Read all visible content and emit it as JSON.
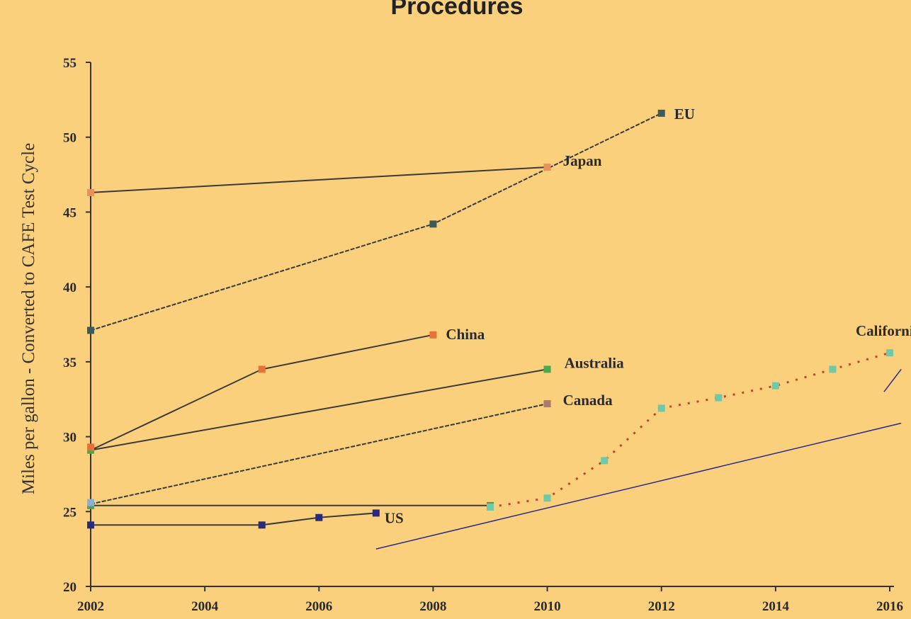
{
  "chart_data": {
    "type": "line",
    "title": "Procedures",
    "ylabel": "Miles per gallon - Converted to CAFE Test Cycle",
    "xlabel": "",
    "xlim": [
      2002,
      2016
    ],
    "ylim": [
      20,
      55
    ],
    "xticks": [
      "2002",
      "2004",
      "2006",
      "2008",
      "2010",
      "2012",
      "2014",
      "2016"
    ],
    "yticks": [
      "20",
      "25",
      "30",
      "35",
      "40",
      "45",
      "50",
      "55"
    ],
    "grid": false,
    "legend": "none",
    "series": [
      {
        "name": "EU",
        "color": "#3a3a3a",
        "marker_color": "#3d5a5a",
        "dashed": true,
        "points": [
          [
            2002,
            37.1
          ],
          [
            2008,
            44.2
          ],
          [
            2012,
            51.6
          ]
        ]
      },
      {
        "name": "Japan",
        "color": "#3a3a3a",
        "marker_color": "#e8915a",
        "dashed": false,
        "points": [
          [
            2002,
            46.3
          ],
          [
            2010,
            48.0
          ]
        ]
      },
      {
        "name": "China",
        "color": "#3a3a3a",
        "marker_color": "#e8703a",
        "dashed": false,
        "points": [
          [
            2002,
            29.1
          ],
          [
            2005,
            34.5
          ],
          [
            2008,
            36.8
          ]
        ]
      },
      {
        "name": "Australia",
        "color": "#3a3a3a",
        "marker_color": "#4aaa4a",
        "dashed": false,
        "points": [
          [
            2002,
            29.1
          ],
          [
            2010,
            34.5
          ]
        ]
      },
      {
        "name": "Canada",
        "color": "#3a3a3a",
        "marker_color": "#aa7a6a",
        "dashed": true,
        "points": [
          [
            2002,
            25.5
          ],
          [
            2010,
            32.2
          ]
        ]
      },
      {
        "name": "US",
        "color": "#3a3a3a",
        "marker_color": "#2a2a7a",
        "dashed": false,
        "points": [
          [
            2002,
            24.1
          ],
          [
            2005,
            24.1
          ],
          [
            2006,
            24.6
          ],
          [
            2007,
            24.9
          ]
        ]
      },
      {
        "name": "",
        "color": "#3a3a3a",
        "marker_color": "#5a9a5a",
        "dashed": false,
        "points": [
          [
            2002,
            25.4
          ],
          [
            2009,
            25.4
          ]
        ]
      },
      {
        "name": "California",
        "color": "#c0432e",
        "marker_color": "#6fc8a8",
        "dashed": true,
        "points": [
          [
            2009,
            25.3
          ],
          [
            2010,
            25.9
          ],
          [
            2011,
            28.4
          ],
          [
            2012,
            31.9
          ],
          [
            2013,
            32.6
          ],
          [
            2014,
            33.4
          ],
          [
            2015,
            34.5
          ],
          [
            2016,
            35.6
          ]
        ]
      }
    ],
    "markers_only": [
      {
        "series": "Japan",
        "point": [
          2002,
          46.3
        ],
        "color": "#e8915a"
      },
      {
        "series": "China",
        "point": [
          2002,
          29.3
        ],
        "color": "#e8703a"
      },
      {
        "series": "",
        "point": [
          2002,
          25.6
        ],
        "color": "#8ab0d8"
      }
    ],
    "annotation_lines": [
      {
        "color": "#2a2a8a",
        "from": [
          2007.0,
          22.5
        ],
        "to": [
          2016.2,
          30.9
        ]
      },
      {
        "color": "#2a2a8a",
        "from": [
          2015.9,
          33.0
        ],
        "to": [
          2016.2,
          34.5
        ]
      }
    ]
  }
}
